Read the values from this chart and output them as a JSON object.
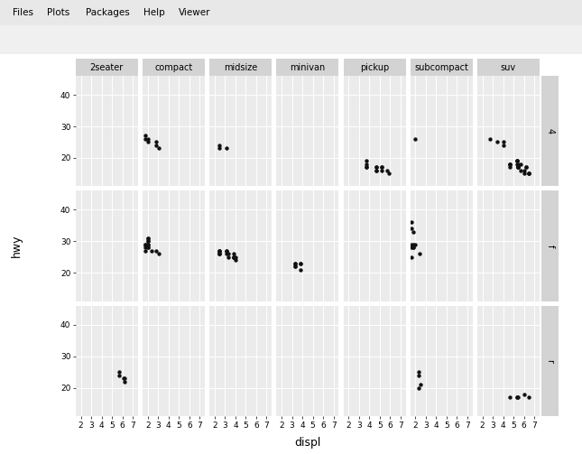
{
  "title": "",
  "xlabel": "displ",
  "ylabel": "hwy",
  "col_labels": [
    "2seater",
    "compact",
    "midsize",
    "minivan",
    "pickup",
    "subcompact",
    "suv"
  ],
  "row_labels": [
    "4",
    "f",
    "r"
  ],
  "bg_color": "#EBEBEB",
  "strip_color": "#D3D3D3",
  "outer_bg": "#F2F2F2",
  "point_color": "#111111",
  "xlim": [
    1.5,
    7.5
  ],
  "ylim": [
    11,
    46
  ],
  "xticks": [
    2,
    3,
    4,
    5,
    6,
    7
  ],
  "yticks": [
    20,
    30,
    40
  ],
  "data": {
    "4_2seater": {
      "displ": [],
      "hwy": []
    },
    "4_compact": {
      "displ": [
        1.8,
        1.8,
        2.0,
        2.0,
        2.8,
        2.8,
        3.1
      ],
      "hwy": [
        26,
        27,
        26,
        25,
        24,
        25,
        23
      ]
    },
    "4_midsize": {
      "displ": [
        2.4,
        2.4,
        3.1
      ],
      "hwy": [
        24,
        23,
        23
      ]
    },
    "4_minivan": {
      "displ": [],
      "hwy": []
    },
    "4_pickup": {
      "displ": [
        3.7,
        3.7,
        3.7,
        3.7,
        4.7,
        4.7,
        4.7,
        4.7,
        5.2,
        5.2,
        5.2,
        5.7,
        5.9
      ],
      "hwy": [
        19,
        18,
        17,
        17,
        17,
        17,
        16,
        16,
        17,
        16,
        17,
        16,
        15
      ]
    },
    "4_subcompact": {
      "displ": [
        2.0
      ],
      "hwy": [
        26
      ]
    },
    "4_suv": {
      "displ": [
        2.7,
        3.4,
        4.0,
        4.0,
        4.6,
        4.6,
        4.6,
        4.6,
        5.4,
        5.4,
        5.4,
        5.4,
        5.4,
        5.7,
        6.0,
        6.2,
        6.2,
        6.5,
        6.5,
        6.5,
        5.3,
        5.3,
        5.3,
        5.3,
        5.7,
        6.0
      ],
      "hwy": [
        26,
        25,
        24,
        25,
        18,
        18,
        18,
        17,
        17,
        17,
        17,
        17,
        18,
        16,
        15,
        17,
        17,
        15,
        15,
        15,
        19,
        19,
        19,
        18,
        18,
        16
      ]
    },
    "f_2seater": {
      "displ": [],
      "hwy": []
    },
    "f_compact": {
      "displ": [
        1.8,
        1.8,
        2.0,
        2.0,
        2.0,
        2.0,
        2.0,
        2.8,
        3.1,
        1.8,
        1.8,
        2.0,
        2.0,
        2.0,
        2.4
      ],
      "hwy": [
        29,
        29,
        31,
        30,
        28,
        28,
        31,
        27,
        26,
        27,
        28,
        29,
        29,
        30,
        27
      ]
    },
    "f_midsize": {
      "displ": [
        2.4,
        2.4,
        2.4,
        2.4,
        2.4,
        2.4,
        3.1,
        3.1,
        3.1,
        3.3,
        3.3,
        3.8,
        3.8,
        3.8,
        3.8,
        3.8,
        4.0,
        4.0
      ],
      "hwy": [
        26,
        26,
        27,
        27,
        27,
        26,
        26,
        27,
        27,
        26,
        25,
        26,
        25,
        25,
        25,
        25,
        24,
        25
      ]
    },
    "f_minivan": {
      "displ": [
        3.3,
        3.3,
        3.3,
        3.3,
        3.8,
        3.8,
        3.8
      ],
      "hwy": [
        23,
        22,
        22,
        23,
        23,
        23,
        21
      ]
    },
    "f_pickup": {
      "displ": [],
      "hwy": []
    },
    "f_subcompact": {
      "displ": [
        1.6,
        1.6,
        1.6,
        1.6,
        1.6,
        1.8,
        1.8,
        1.8,
        1.8,
        2.0,
        2.4
      ],
      "hwy": [
        29,
        28,
        34,
        36,
        25,
        33,
        29,
        28,
        28,
        29,
        26
      ]
    },
    "f_suv": {
      "displ": [],
      "hwy": []
    },
    "r_2seater": {
      "displ": [
        5.7,
        5.7,
        6.1,
        6.2,
        6.2
      ],
      "hwy": [
        25,
        24,
        23,
        22,
        23
      ]
    },
    "r_compact": {
      "displ": [],
      "hwy": []
    },
    "r_midsize": {
      "displ": [],
      "hwy": []
    },
    "r_minivan": {
      "displ": [],
      "hwy": []
    },
    "r_pickup": {
      "displ": [],
      "hwy": []
    },
    "r_subcompact": {
      "displ": [
        2.3,
        2.3,
        2.3,
        2.5
      ],
      "hwy": [
        25,
        24,
        20,
        21
      ]
    },
    "r_suv": {
      "displ": [
        4.6,
        5.4,
        5.3,
        5.3,
        6.0,
        6.5
      ],
      "hwy": [
        17,
        17,
        17,
        17,
        18,
        17
      ]
    }
  }
}
